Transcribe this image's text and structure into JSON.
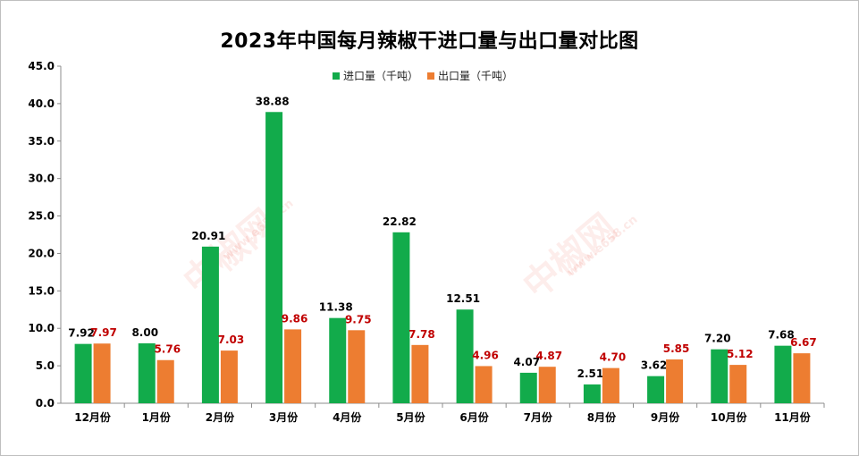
{
  "chart_data": {
    "type": "bar",
    "title": "2023年中国每月辣椒干进口量与出口量对比图",
    "categories": [
      "12月份",
      "1月份",
      "2月份",
      "3月份",
      "4月份",
      "5月份",
      "6月份",
      "7月份",
      "8月份",
      "9月份",
      "10月份",
      "11月份"
    ],
    "series": [
      {
        "name": "进口量（千吨）",
        "color": "#12ab4b",
        "label_color": "#000000",
        "values": [
          7.92,
          8.0,
          20.91,
          38.88,
          11.38,
          22.82,
          12.51,
          4.07,
          2.51,
          3.62,
          7.2,
          7.68
        ],
        "labels": [
          "7.92",
          "8.00",
          "20.91",
          "38.88",
          "11.38",
          "22.82",
          "12.51",
          "4.07",
          "2.51",
          "3.62",
          "7.20",
          "7.68"
        ]
      },
      {
        "name": "出口量（千吨）",
        "color": "#ed7d31",
        "label_color": "#c00000",
        "values": [
          7.97,
          5.76,
          7.03,
          9.86,
          9.75,
          7.78,
          4.96,
          4.87,
          4.7,
          5.85,
          5.12,
          6.67
        ],
        "labels": [
          "7.97",
          "5.76",
          "7.03",
          "9.86",
          "9.75",
          "7.78",
          "4.96",
          "4.87",
          "4.70",
          "5.85",
          "5.12",
          "6.67"
        ]
      }
    ],
    "ylim": [
      0,
      45
    ],
    "yticks": [
      "0.0",
      "5.0",
      "10.0",
      "15.0",
      "20.0",
      "25.0",
      "30.0",
      "35.0",
      "40.0",
      "45.0"
    ],
    "ytick_values": [
      0,
      5,
      10,
      15,
      20,
      25,
      30,
      35,
      40,
      45
    ],
    "xlabel": "",
    "ylabel": "",
    "grid": false,
    "legend_position": "top-center"
  },
  "watermark": {
    "brand": "中椒网",
    "url": "www.e658.cn"
  }
}
